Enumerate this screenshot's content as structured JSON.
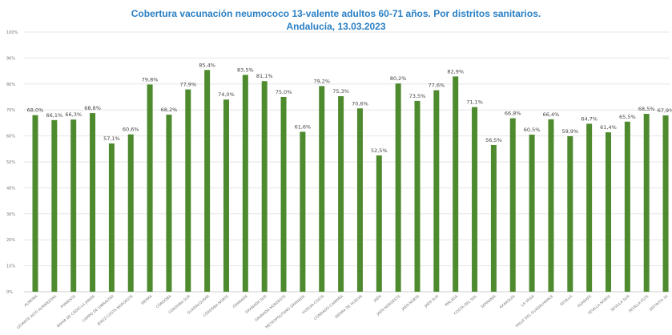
{
  "chart_data": {
    "type": "bar",
    "title": "Cobertura vacunación neumococo 13-valente adultos 60-71 años. Por distritos sanitarios.",
    "subtitle": "Andalucía, 13.03.2023",
    "xlabel": "",
    "ylabel": "",
    "ylim": [
      0,
      100
    ],
    "yticks": [
      "0%",
      "10%",
      "20%",
      "30%",
      "40%",
      "50%",
      "60%",
      "70%",
      "80%",
      "90%",
      "100%"
    ],
    "grid": true,
    "bar_color": "#4e8a2e",
    "categories": [
      "ALMERÍA",
      "LEVANTE-ALTO ALMANZORA",
      "PONIENTE",
      "BAHÍA DE CÁDIZ-LA JANDA",
      "CAMPO DE GIBRALTAR",
      "JEREZ-COSTA NOROESTE",
      "SIERRA",
      "CÓRDOBA",
      "CÓRDOBA SUR",
      "GUADALQUIVIR",
      "CÓRDOBA NORTE",
      "GRANADA",
      "GRANADA SUR",
      "GRANADA NORDESTE",
      "METROPOLITANO GRANADA",
      "HUELVA-COSTA",
      "CONDADO-CAMPIÑA",
      "SIERRA DE HUELVA",
      "JAÉN",
      "JAÉN NORDESTE",
      "JAÉN NORTE",
      "JAÉN SUR",
      "MÁLAGA",
      "COSTA DEL SOL",
      "SERRANÍA",
      "AXARQUÍA",
      "LA VEGA",
      "VALLE DEL GUADALHORCE",
      "SEVILLA",
      "ALJARAFE",
      "SEVILLA NORTE",
      "SEVILLA SUR",
      "SEVILLA ESTE",
      "DISTRITO 34"
    ],
    "values": [
      68.0,
      66.1,
      66.3,
      68.8,
      57.1,
      60.6,
      79.8,
      68.2,
      77.9,
      85.4,
      74.0,
      83.5,
      81.1,
      75.0,
      61.6,
      79.2,
      75.3,
      70.6,
      52.5,
      80.2,
      73.5,
      77.6,
      82.9,
      71.1,
      56.5,
      66.8,
      60.5,
      66.4,
      59.9,
      64.7,
      61.4,
      65.5,
      68.5,
      67.9
    ],
    "value_labels": [
      "68,0%",
      "66,1%",
      "66,3%",
      "68,8%",
      "57,1%",
      "60,6%",
      "79,8%",
      "68,2%",
      "77,9%",
      "85,4%",
      "74,0%",
      "83,5%",
      "81,1%",
      "75,0%",
      "61,6%",
      "79,2%",
      "75,3%",
      "70,6%",
      "52,5%",
      "80,2%",
      "73,5%",
      "77,6%",
      "82,9%",
      "71,1%",
      "56,5%",
      "66,8%",
      "60,5%",
      "66,4%",
      "59,9%",
      "64,7%",
      "61,4%",
      "65,5%",
      "68,5%",
      "67,9%"
    ]
  }
}
